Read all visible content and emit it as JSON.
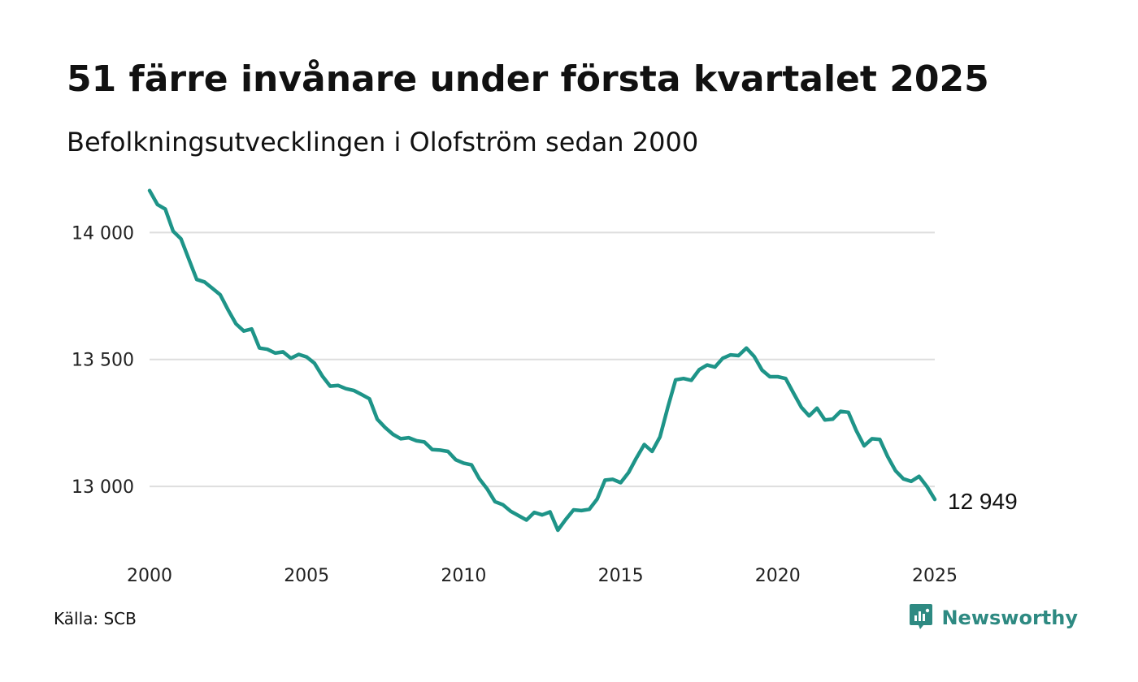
{
  "title": "51 färre invånare under första kvartalet 2025",
  "subtitle": "Befolkningsutvecklingen i Olofström sedan 2000",
  "source": "Källa: SCB",
  "brand": {
    "name": "Newsworthy",
    "color": "#2e8a82",
    "icon": "chart-bubble-icon"
  },
  "chart_data": {
    "type": "line",
    "line_color": "#1e9488",
    "grid": true,
    "ylim": [
      12780,
      14180
    ],
    "xlim": [
      2000,
      2025
    ],
    "y_ticks": [
      {
        "value": 13000,
        "label": "13 000"
      },
      {
        "value": 13500,
        "label": "13 500"
      },
      {
        "value": 14000,
        "label": "14 000"
      }
    ],
    "x_ticks": [
      {
        "value": 2000,
        "label": "2000"
      },
      {
        "value": 2005,
        "label": "2005"
      },
      {
        "value": 2010,
        "label": "2010"
      },
      {
        "value": 2015,
        "label": "2015"
      },
      {
        "value": 2020,
        "label": "2020"
      },
      {
        "value": 2025,
        "label": "2025"
      }
    ],
    "end_label": "12 949",
    "series": [
      {
        "x": [
          2000.0,
          2000.25,
          2000.5,
          2000.75,
          2001.0,
          2001.25,
          2001.5,
          2001.75,
          2002.0,
          2002.25,
          2002.5,
          2002.75,
          2003.0,
          2003.25,
          2003.5,
          2003.75,
          2004.0,
          2004.25,
          2004.5,
          2004.75,
          2005.0,
          2005.25,
          2005.5,
          2005.75,
          2006.0,
          2006.25,
          2006.5,
          2006.75,
          2007.0,
          2007.25,
          2007.5,
          2007.75,
          2008.0,
          2008.25,
          2008.5,
          2008.75,
          2009.0,
          2009.25,
          2009.5,
          2009.75,
          2010.0,
          2010.25,
          2010.5,
          2010.75,
          2011.0,
          2011.25,
          2011.5,
          2011.75,
          2012.0,
          2012.25,
          2012.5,
          2012.75,
          2013.0,
          2013.25,
          2013.5,
          2013.75,
          2014.0,
          2014.25,
          2014.5,
          2014.75,
          2015.0,
          2015.25,
          2015.5,
          2015.75,
          2016.0,
          2016.25,
          2016.5,
          2016.75,
          2017.0,
          2017.25,
          2017.5,
          2017.75,
          2018.0,
          2018.25,
          2018.5,
          2018.75,
          2019.0,
          2019.25,
          2019.5,
          2019.75,
          2020.0,
          2020.25,
          2020.5,
          2020.75,
          2021.0,
          2021.25,
          2021.5,
          2021.75,
          2022.0,
          2022.25,
          2022.5,
          2022.75,
          2023.0,
          2023.25,
          2023.5,
          2023.75,
          2024.0,
          2024.25,
          2024.5,
          2024.75,
          2025.0
        ],
        "values": [
          14165,
          14110,
          14092,
          14005,
          13975,
          13895,
          13815,
          13805,
          13780,
          13755,
          13695,
          13640,
          13612,
          13620,
          13545,
          13540,
          13525,
          13530,
          13505,
          13520,
          13510,
          13485,
          13435,
          13395,
          13398,
          13385,
          13378,
          13362,
          13345,
          13265,
          13232,
          13205,
          13188,
          13192,
          13180,
          13175,
          13145,
          13143,
          13138,
          13105,
          13092,
          13085,
          13030,
          12990,
          12940,
          12928,
          12902,
          12885,
          12868,
          12898,
          12888,
          12900,
          12828,
          12870,
          12908,
          12905,
          12910,
          12950,
          13025,
          13028,
          13015,
          13055,
          13112,
          13165,
          13138,
          13195,
          13312,
          13420,
          13425,
          13418,
          13460,
          13478,
          13470,
          13505,
          13518,
          13515,
          13545,
          13512,
          13458,
          13432,
          13432,
          13425,
          13368,
          13312,
          13278,
          13308,
          13262,
          13265,
          13296,
          13292,
          13220,
          13160,
          13188,
          13185,
          13118,
          13062,
          13030,
          13020,
          13040,
          13000,
          12949
        ]
      }
    ]
  }
}
